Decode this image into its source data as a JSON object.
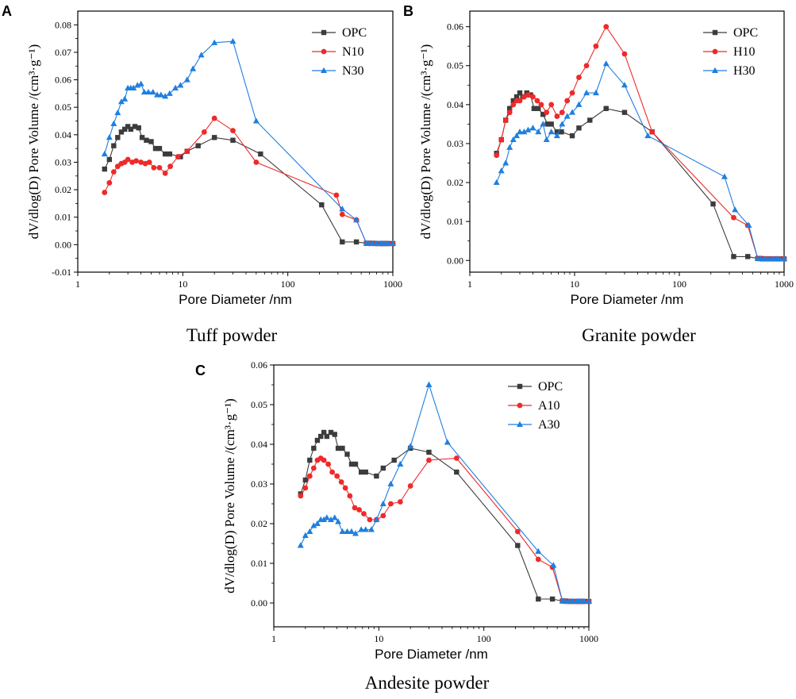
{
  "colors": {
    "OPC": "#3c3c3c",
    "second": "#ee2a2a",
    "third": "#1f7fe0"
  },
  "chart_data": [
    {
      "type": "line",
      "panel": "A",
      "caption": "Tuff powder",
      "xlabel": "Pore Diameter /nm",
      "ylabel": "dV/dlog(D) Pore Volume /(cm³·g⁻¹)",
      "xscale": "log",
      "xlim": [
        1,
        1000
      ],
      "ylim": [
        -0.01,
        0.085
      ],
      "xticks": [
        1,
        10,
        100,
        1000
      ],
      "yticks": [
        -0.01,
        0.0,
        0.01,
        0.02,
        0.03,
        0.04,
        0.05,
        0.06,
        0.07,
        0.08
      ],
      "ytick_labels": [
        "-0.01",
        "0.00",
        "0.01",
        "0.02",
        "0.03",
        "0.04",
        "0.05",
        "0.06",
        "0.07",
        "0.08"
      ],
      "legend_position": "top-right",
      "series": [
        {
          "name": "OPC",
          "color_key": "OPC",
          "marker": "square",
          "x": [
            1.8,
            2.0,
            2.2,
            2.4,
            2.6,
            2.8,
            3.0,
            3.2,
            3.5,
            3.8,
            4.1,
            4.5,
            5.0,
            5.5,
            6.0,
            6.8,
            7.5,
            9.5,
            11,
            14,
            20,
            30,
            55,
            210,
            330,
            450,
            560,
            600,
            650,
            700,
            760,
            800,
            850,
            900,
            1000
          ],
          "y": [
            0.0275,
            0.031,
            0.036,
            0.039,
            0.041,
            0.042,
            0.043,
            0.042,
            0.043,
            0.0425,
            0.039,
            0.038,
            0.0375,
            0.035,
            0.035,
            0.033,
            0.033,
            0.032,
            0.034,
            0.036,
            0.039,
            0.038,
            0.033,
            0.0145,
            0.001,
            0.001,
            0.0005,
            0.0005,
            0.0005,
            0.0004,
            0.0004,
            0.0004,
            0.0004,
            0.0004,
            0.0004
          ]
        },
        {
          "name": "N10",
          "color_key": "second",
          "marker": "circle",
          "x": [
            1.8,
            2.0,
            2.2,
            2.4,
            2.6,
            2.8,
            3.0,
            3.3,
            3.6,
            4.0,
            4.4,
            4.8,
            5.3,
            6.0,
            6.8,
            7.6,
            9.0,
            11,
            16,
            20,
            30,
            50,
            290,
            330,
            450,
            560,
            600,
            650,
            700,
            760,
            800,
            850,
            900,
            1000
          ],
          "y": [
            0.019,
            0.0225,
            0.0265,
            0.0285,
            0.0295,
            0.03,
            0.031,
            0.03,
            0.0305,
            0.03,
            0.0295,
            0.03,
            0.028,
            0.028,
            0.026,
            0.0285,
            0.032,
            0.034,
            0.041,
            0.046,
            0.0415,
            0.03,
            0.018,
            0.011,
            0.009,
            0.0005,
            0.0004,
            0.0004,
            0.0004,
            0.0004,
            0.0004,
            0.0004,
            0.0004,
            0.0004
          ]
        },
        {
          "name": "N30",
          "color_key": "third",
          "marker": "triangle",
          "x": [
            1.8,
            2.0,
            2.2,
            2.4,
            2.6,
            2.8,
            3.0,
            3.2,
            3.4,
            3.7,
            4.0,
            4.3,
            4.7,
            5.2,
            5.7,
            6.2,
            6.8,
            7.5,
            8.5,
            9.5,
            11,
            12.5,
            15,
            20,
            30,
            50,
            330,
            450,
            560,
            600,
            650,
            700,
            760,
            800,
            850,
            900,
            1000
          ],
          "y": [
            0.033,
            0.039,
            0.044,
            0.048,
            0.052,
            0.053,
            0.057,
            0.057,
            0.057,
            0.058,
            0.0585,
            0.0555,
            0.0555,
            0.0555,
            0.0545,
            0.0545,
            0.054,
            0.055,
            0.057,
            0.058,
            0.06,
            0.064,
            0.069,
            0.0735,
            0.074,
            0.045,
            0.013,
            0.009,
            0.0005,
            0.0005,
            0.0004,
            0.0004,
            0.0004,
            0.0004,
            0.0004,
            0.0004,
            0.0004
          ]
        }
      ]
    },
    {
      "type": "line",
      "panel": "B",
      "caption": "Granite powder",
      "xlabel": "Pore Diameter /nm",
      "ylabel": "dV/dlog(D) Pore Volume /(cm³·g⁻¹)",
      "xscale": "log",
      "xlim": [
        1,
        1000
      ],
      "ylim": [
        -0.003,
        0.064
      ],
      "xticks": [
        1,
        10,
        100,
        1000
      ],
      "yticks": [
        0.0,
        0.01,
        0.02,
        0.03,
        0.04,
        0.05,
        0.06
      ],
      "ytick_labels": [
        "0.00",
        "0.01",
        "0.02",
        "0.03",
        "0.04",
        "0.05",
        "0.06"
      ],
      "legend_position": "top-right",
      "series": [
        {
          "name": "OPC",
          "color_key": "OPC",
          "marker": "square",
          "x": [
            1.8,
            2.0,
            2.2,
            2.4,
            2.6,
            2.8,
            3.0,
            3.2,
            3.5,
            3.8,
            4.1,
            4.5,
            5.0,
            5.5,
            6.0,
            6.8,
            7.5,
            9.5,
            11,
            14,
            20,
            30,
            55,
            210,
            330,
            450,
            560,
            600,
            650,
            700,
            760,
            800,
            850,
            900,
            1000
          ],
          "y": [
            0.0275,
            0.031,
            0.036,
            0.039,
            0.041,
            0.042,
            0.043,
            0.042,
            0.043,
            0.0425,
            0.039,
            0.039,
            0.0375,
            0.035,
            0.035,
            0.033,
            0.033,
            0.032,
            0.034,
            0.036,
            0.039,
            0.038,
            0.033,
            0.0145,
            0.001,
            0.001,
            0.0005,
            0.0005,
            0.0004,
            0.0004,
            0.0004,
            0.0004,
            0.0004,
            0.0004,
            0.0004
          ]
        },
        {
          "name": "H10",
          "color_key": "second",
          "marker": "circle",
          "x": [
            1.8,
            2.0,
            2.2,
            2.4,
            2.6,
            2.8,
            3.0,
            3.3,
            3.6,
            4.0,
            4.4,
            4.8,
            5.4,
            6.0,
            6.8,
            7.6,
            8.5,
            9.5,
            11,
            13,
            16,
            20,
            30,
            55,
            330,
            450,
            560,
            600,
            650,
            700,
            760,
            800,
            850,
            900,
            1000
          ],
          "y": [
            0.027,
            0.031,
            0.036,
            0.038,
            0.04,
            0.041,
            0.041,
            0.042,
            0.0425,
            0.042,
            0.041,
            0.04,
            0.038,
            0.04,
            0.037,
            0.038,
            0.041,
            0.043,
            0.047,
            0.05,
            0.055,
            0.06,
            0.053,
            0.033,
            0.011,
            0.009,
            0.0005,
            0.0004,
            0.0004,
            0.0004,
            0.0004,
            0.0004,
            0.0004,
            0.0004,
            0.0004
          ]
        },
        {
          "name": "H30",
          "color_key": "third",
          "marker": "triangle",
          "x": [
            1.8,
            2.0,
            2.2,
            2.4,
            2.6,
            2.8,
            3.0,
            3.3,
            3.6,
            4.0,
            4.5,
            5.0,
            5.4,
            6.0,
            6.8,
            7.6,
            8.5,
            9.5,
            11,
            13,
            16,
            20,
            30,
            50,
            270,
            340,
            460,
            560,
            600,
            650,
            700,
            760,
            800,
            850,
            900,
            1000
          ],
          "y": [
            0.02,
            0.023,
            0.025,
            0.029,
            0.031,
            0.032,
            0.033,
            0.033,
            0.0335,
            0.034,
            0.033,
            0.035,
            0.031,
            0.033,
            0.032,
            0.035,
            0.037,
            0.038,
            0.04,
            0.043,
            0.043,
            0.0505,
            0.045,
            0.032,
            0.0215,
            0.013,
            0.009,
            0.0005,
            0.0004,
            0.0004,
            0.0004,
            0.0004,
            0.0004,
            0.0004,
            0.0004,
            0.0004
          ]
        }
      ]
    },
    {
      "type": "line",
      "panel": "C",
      "caption": "Andesite powder",
      "xlabel": "Pore Diameter /nm",
      "ylabel": "dV/dlog(D) Pore Volume /(cm³·g⁻¹)",
      "xscale": "log",
      "xlim": [
        1,
        1000
      ],
      "ylim": [
        -0.006,
        0.06
      ],
      "xticks": [
        1,
        10,
        100,
        1000
      ],
      "yticks": [
        0.0,
        0.01,
        0.02,
        0.03,
        0.04,
        0.05,
        0.06
      ],
      "ytick_labels": [
        "0.00",
        "0.01",
        "0.02",
        "0.03",
        "0.04",
        "0.05",
        "0.06"
      ],
      "legend_position": "top-right",
      "series": [
        {
          "name": "OPC",
          "color_key": "OPC",
          "marker": "square",
          "x": [
            1.8,
            2.0,
            2.2,
            2.4,
            2.6,
            2.8,
            3.0,
            3.2,
            3.5,
            3.8,
            4.1,
            4.5,
            5.0,
            5.5,
            6.0,
            6.8,
            7.5,
            9.5,
            11,
            14,
            20,
            30,
            55,
            210,
            330,
            450,
            560,
            600,
            650,
            700,
            760,
            800,
            850,
            900,
            1000
          ],
          "y": [
            0.0275,
            0.031,
            0.036,
            0.039,
            0.041,
            0.042,
            0.043,
            0.042,
            0.043,
            0.0425,
            0.039,
            0.039,
            0.0375,
            0.035,
            0.035,
            0.033,
            0.033,
            0.032,
            0.034,
            0.036,
            0.039,
            0.038,
            0.033,
            0.0145,
            0.001,
            0.001,
            0.0005,
            0.0005,
            0.0004,
            0.0004,
            0.0004,
            0.0004,
            0.0004,
            0.0004,
            0.0004
          ]
        },
        {
          "name": "A10",
          "color_key": "second",
          "marker": "circle",
          "x": [
            1.8,
            2.0,
            2.2,
            2.4,
            2.6,
            2.8,
            3.0,
            3.3,
            3.6,
            4.0,
            4.4,
            4.8,
            5.3,
            5.9,
            6.5,
            7.2,
            8.2,
            9.5,
            11,
            13,
            16,
            20,
            30,
            55,
            210,
            330,
            450,
            560,
            600,
            650,
            700,
            760,
            800,
            850,
            900,
            1000
          ],
          "y": [
            0.027,
            0.029,
            0.032,
            0.034,
            0.036,
            0.0365,
            0.036,
            0.035,
            0.033,
            0.032,
            0.0305,
            0.029,
            0.027,
            0.024,
            0.0235,
            0.0225,
            0.021,
            0.021,
            0.022,
            0.025,
            0.0255,
            0.0295,
            0.036,
            0.0365,
            0.018,
            0.011,
            0.009,
            0.0005,
            0.0004,
            0.0004,
            0.0004,
            0.0004,
            0.0004,
            0.0004,
            0.0004,
            0.0004
          ]
        },
        {
          "name": "A30",
          "color_key": "third",
          "marker": "triangle",
          "x": [
            1.8,
            2.0,
            2.2,
            2.4,
            2.6,
            2.8,
            3.0,
            3.2,
            3.5,
            3.8,
            4.1,
            4.5,
            5.0,
            5.5,
            6.0,
            6.8,
            7.5,
            8.5,
            9.5,
            11,
            13,
            16,
            20,
            30,
            45,
            330,
            460,
            560,
            600,
            650,
            700,
            760,
            800,
            850,
            900,
            1000
          ],
          "y": [
            0.0145,
            0.017,
            0.018,
            0.0195,
            0.02,
            0.021,
            0.021,
            0.0215,
            0.021,
            0.0215,
            0.0205,
            0.018,
            0.018,
            0.018,
            0.0175,
            0.0185,
            0.0185,
            0.0185,
            0.021,
            0.025,
            0.03,
            0.035,
            0.0395,
            0.055,
            0.0405,
            0.013,
            0.0095,
            0.0005,
            0.0004,
            0.0004,
            0.0004,
            0.0004,
            0.0004,
            0.0004,
            0.0004,
            0.0004
          ]
        }
      ]
    }
  ]
}
